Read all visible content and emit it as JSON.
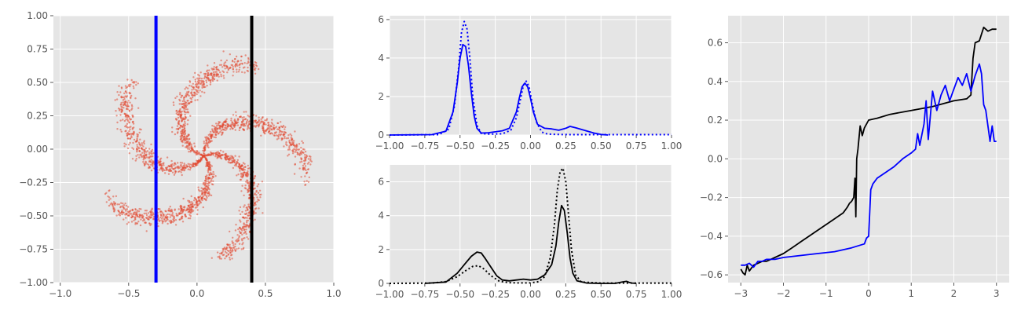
{
  "chart_data": [
    {
      "id": "panel1",
      "type": "scatter",
      "title": "",
      "xlabel": "",
      "ylabel": "",
      "xlim": [
        -1.05,
        1.0
      ],
      "ylim": [
        -1.0,
        1.0
      ],
      "xticks": [
        -1.0,
        -0.5,
        0.0,
        0.5,
        1.0
      ],
      "xtick_labels": [
        "−1.0",
        "−0.5",
        "0.0",
        "0.5",
        "1.0"
      ],
      "yticks": [
        -1.0,
        -0.75,
        -0.5,
        -0.25,
        0.0,
        0.25,
        0.5,
        0.75,
        1.0
      ],
      "ytick_labels": [
        "−1.00",
        "−0.75",
        "−0.50",
        "−0.25",
        "0.00",
        "0.25",
        "0.50",
        "0.75",
        "1.00"
      ],
      "grid": true,
      "point_color": "#e24a33",
      "pinwheel": {
        "arms": 5,
        "radius_max": 0.78,
        "twist": 2.2,
        "point_count": 2600
      },
      "vlines": [
        {
          "x": -0.3,
          "color": "#0000ff"
        },
        {
          "x": 0.4,
          "color": "#000000"
        }
      ]
    },
    {
      "id": "panel2",
      "type": "line",
      "title": "",
      "xlabel": "",
      "ylabel": "",
      "xlim": [
        -1.0,
        1.0
      ],
      "ylim": [
        0,
        6.2
      ],
      "xticks": [
        -1.0,
        -0.75,
        -0.5,
        -0.25,
        0.0,
        0.25,
        0.5,
        0.75,
        1.0
      ],
      "xtick_labels": [
        "−1.00",
        "−0.75",
        "−0.50",
        "−0.25",
        "0.00",
        "0.25",
        "0.50",
        "0.75",
        "1.00"
      ],
      "yticks": [
        0,
        2,
        4,
        6
      ],
      "ytick_labels": [
        "0",
        "2",
        "4",
        "6"
      ],
      "grid": true,
      "series": [
        {
          "style": "solid",
          "color": "#0000ff",
          "x": [
            -1.0,
            -0.7,
            -0.6,
            -0.55,
            -0.52,
            -0.5,
            -0.48,
            -0.46,
            -0.44,
            -0.42,
            -0.4,
            -0.38,
            -0.35,
            -0.3,
            -0.2,
            -0.15,
            -0.1,
            -0.08,
            -0.06,
            -0.04,
            -0.02,
            0.0,
            0.02,
            0.05,
            0.1,
            0.15,
            0.2,
            0.25,
            0.28,
            0.32,
            0.38,
            0.45,
            0.5,
            0.55
          ],
          "y": [
            0,
            0.02,
            0.2,
            1.2,
            2.7,
            4.0,
            4.7,
            4.6,
            3.6,
            2.2,
            1.0,
            0.35,
            0.1,
            0.12,
            0.22,
            0.35,
            1.2,
            1.9,
            2.5,
            2.7,
            2.5,
            1.9,
            1.2,
            0.55,
            0.35,
            0.32,
            0.25,
            0.35,
            0.45,
            0.38,
            0.25,
            0.1,
            0.03,
            0
          ]
        },
        {
          "style": "dotted",
          "color": "#0000ff",
          "x": [
            -1.0,
            -0.65,
            -0.58,
            -0.54,
            -0.51,
            -0.49,
            -0.47,
            -0.45,
            -0.43,
            -0.41,
            -0.38,
            -0.35,
            -0.3,
            -0.2,
            -0.14,
            -0.1,
            -0.07,
            -0.05,
            -0.03,
            -0.01,
            0.01,
            0.04,
            0.08,
            0.12,
            0.2,
            0.3,
            0.5,
            0.7,
            1.0
          ],
          "y": [
            0,
            0.02,
            0.3,
            1.5,
            3.5,
            5.3,
            5.9,
            5.5,
            4.0,
            2.0,
            0.5,
            0.08,
            0.05,
            0.06,
            0.25,
            0.9,
            1.9,
            2.6,
            2.8,
            2.5,
            1.7,
            0.7,
            0.15,
            0.05,
            0.03,
            0.02,
            0.02,
            0.02,
            0.02
          ]
        }
      ]
    },
    {
      "id": "panel3",
      "type": "line",
      "title": "",
      "xlabel": "",
      "ylabel": "",
      "xlim": [
        -1.0,
        1.0
      ],
      "ylim": [
        0,
        7.0
      ],
      "xticks": [
        -1.0,
        -0.75,
        -0.5,
        -0.25,
        0.0,
        0.25,
        0.5,
        0.75,
        1.0
      ],
      "xtick_labels": [
        "−1.00",
        "−0.75",
        "−0.50",
        "−0.25",
        "0.00",
        "0.25",
        "0.50",
        "0.75",
        "1.00"
      ],
      "yticks": [
        0,
        2,
        4,
        6
      ],
      "ytick_labels": [
        "0",
        "2",
        "4",
        "6"
      ],
      "grid": true,
      "series": [
        {
          "style": "solid",
          "color": "#000000",
          "x": [
            -0.75,
            -0.6,
            -0.52,
            -0.46,
            -0.42,
            -0.38,
            -0.35,
            -0.32,
            -0.28,
            -0.24,
            -0.2,
            -0.15,
            -0.1,
            -0.05,
            0.0,
            0.05,
            0.1,
            0.15,
            0.18,
            0.2,
            0.22,
            0.24,
            0.26,
            0.28,
            0.3,
            0.33,
            0.4,
            0.5,
            0.6,
            0.65,
            0.68,
            0.7,
            0.72,
            0.75
          ],
          "y": [
            0,
            0.08,
            0.6,
            1.2,
            1.6,
            1.85,
            1.8,
            1.45,
            0.95,
            0.45,
            0.2,
            0.15,
            0.2,
            0.25,
            0.2,
            0.25,
            0.5,
            1.1,
            2.2,
            3.6,
            4.6,
            4.3,
            3.0,
            1.5,
            0.6,
            0.15,
            0.02,
            0,
            0,
            0.08,
            0.12,
            0.06,
            0.02,
            0
          ]
        },
        {
          "style": "dotted",
          "color": "#000000",
          "x": [
            -1.0,
            -0.7,
            -0.6,
            -0.52,
            -0.46,
            -0.41,
            -0.37,
            -0.33,
            -0.28,
            -0.22,
            -0.15,
            -0.08,
            0.0,
            0.06,
            0.1,
            0.14,
            0.17,
            0.19,
            0.21,
            0.23,
            0.25,
            0.27,
            0.29,
            0.32,
            0.36,
            0.5,
            0.75,
            1.0
          ],
          "y": [
            0,
            0.02,
            0.1,
            0.4,
            0.75,
            1.0,
            1.05,
            0.85,
            0.45,
            0.12,
            0.04,
            0.03,
            0.03,
            0.1,
            0.4,
            1.5,
            3.5,
            5.5,
            6.6,
            6.8,
            6.0,
            4.0,
            2.0,
            0.5,
            0.08,
            0.02,
            0.02,
            0.02
          ]
        }
      ]
    },
    {
      "id": "panel4",
      "type": "line",
      "title": "",
      "xlabel": "",
      "ylabel": "",
      "xlim": [
        -3.3,
        3.3
      ],
      "ylim": [
        -0.64,
        0.74
      ],
      "xticks": [
        -3,
        -2,
        -1,
        0,
        1,
        2,
        3
      ],
      "xtick_labels": [
        "−3",
        "−2",
        "−1",
        "0",
        "1",
        "2",
        "3"
      ],
      "yticks": [
        -0.6,
        -0.4,
        -0.2,
        0.0,
        0.2,
        0.4,
        0.6
      ],
      "ytick_labels": [
        "−0.6",
        "−0.4",
        "−0.2",
        "0.0",
        "0.2",
        "0.4",
        "0.6"
      ],
      "grid": true,
      "series": [
        {
          "color": "#000000",
          "x": [
            -3.0,
            -2.95,
            -2.9,
            -2.85,
            -2.8,
            -2.7,
            -2.6,
            -2.5,
            -2.4,
            -2.2,
            -2.0,
            -1.8,
            -1.6,
            -1.4,
            -1.2,
            -1.0,
            -0.8,
            -0.6,
            -0.5,
            -0.45,
            -0.4,
            -0.35,
            -0.32,
            -0.3,
            -0.28,
            -0.25,
            -0.2,
            -0.15,
            -0.1,
            -0.05,
            0.0,
            0.2,
            0.5,
            1.0,
            1.5,
            2.0,
            2.3,
            2.4,
            2.45,
            2.5,
            2.6,
            2.7,
            2.8,
            2.9,
            3.0
          ],
          "y": [
            -0.57,
            -0.59,
            -0.6,
            -0.55,
            -0.58,
            -0.55,
            -0.54,
            -0.53,
            -0.53,
            -0.51,
            -0.49,
            -0.46,
            -0.43,
            -0.4,
            -0.37,
            -0.34,
            -0.31,
            -0.28,
            -0.25,
            -0.23,
            -0.22,
            -0.2,
            -0.1,
            -0.3,
            0.0,
            0.05,
            0.17,
            0.12,
            0.16,
            0.18,
            0.2,
            0.21,
            0.23,
            0.25,
            0.27,
            0.3,
            0.31,
            0.33,
            0.52,
            0.6,
            0.61,
            0.68,
            0.66,
            0.67,
            0.67
          ]
        },
        {
          "color": "#0000ff",
          "x": [
            -3.0,
            -2.9,
            -2.8,
            -2.7,
            -2.6,
            -2.5,
            -2.4,
            -2.2,
            -2.0,
            -1.6,
            -1.2,
            -0.8,
            -0.4,
            -0.1,
            -0.05,
            0.0,
            0.05,
            0.1,
            0.2,
            0.4,
            0.6,
            0.8,
            1.0,
            1.1,
            1.15,
            1.2,
            1.3,
            1.35,
            1.4,
            1.5,
            1.6,
            1.7,
            1.8,
            1.9,
            2.0,
            2.1,
            2.2,
            2.3,
            2.4,
            2.5,
            2.6,
            2.65,
            2.7,
            2.75,
            2.85,
            2.9,
            2.95,
            3.0
          ],
          "y": [
            -0.55,
            -0.55,
            -0.54,
            -0.56,
            -0.53,
            -0.53,
            -0.52,
            -0.52,
            -0.51,
            -0.5,
            -0.49,
            -0.48,
            -0.46,
            -0.44,
            -0.41,
            -0.4,
            -0.16,
            -0.13,
            -0.1,
            -0.07,
            -0.04,
            0.0,
            0.03,
            0.05,
            0.13,
            0.07,
            0.18,
            0.3,
            0.1,
            0.35,
            0.25,
            0.33,
            0.38,
            0.3,
            0.36,
            0.42,
            0.38,
            0.44,
            0.35,
            0.43,
            0.49,
            0.44,
            0.28,
            0.25,
            0.09,
            0.17,
            0.09,
            0.09
          ]
        }
      ]
    }
  ]
}
